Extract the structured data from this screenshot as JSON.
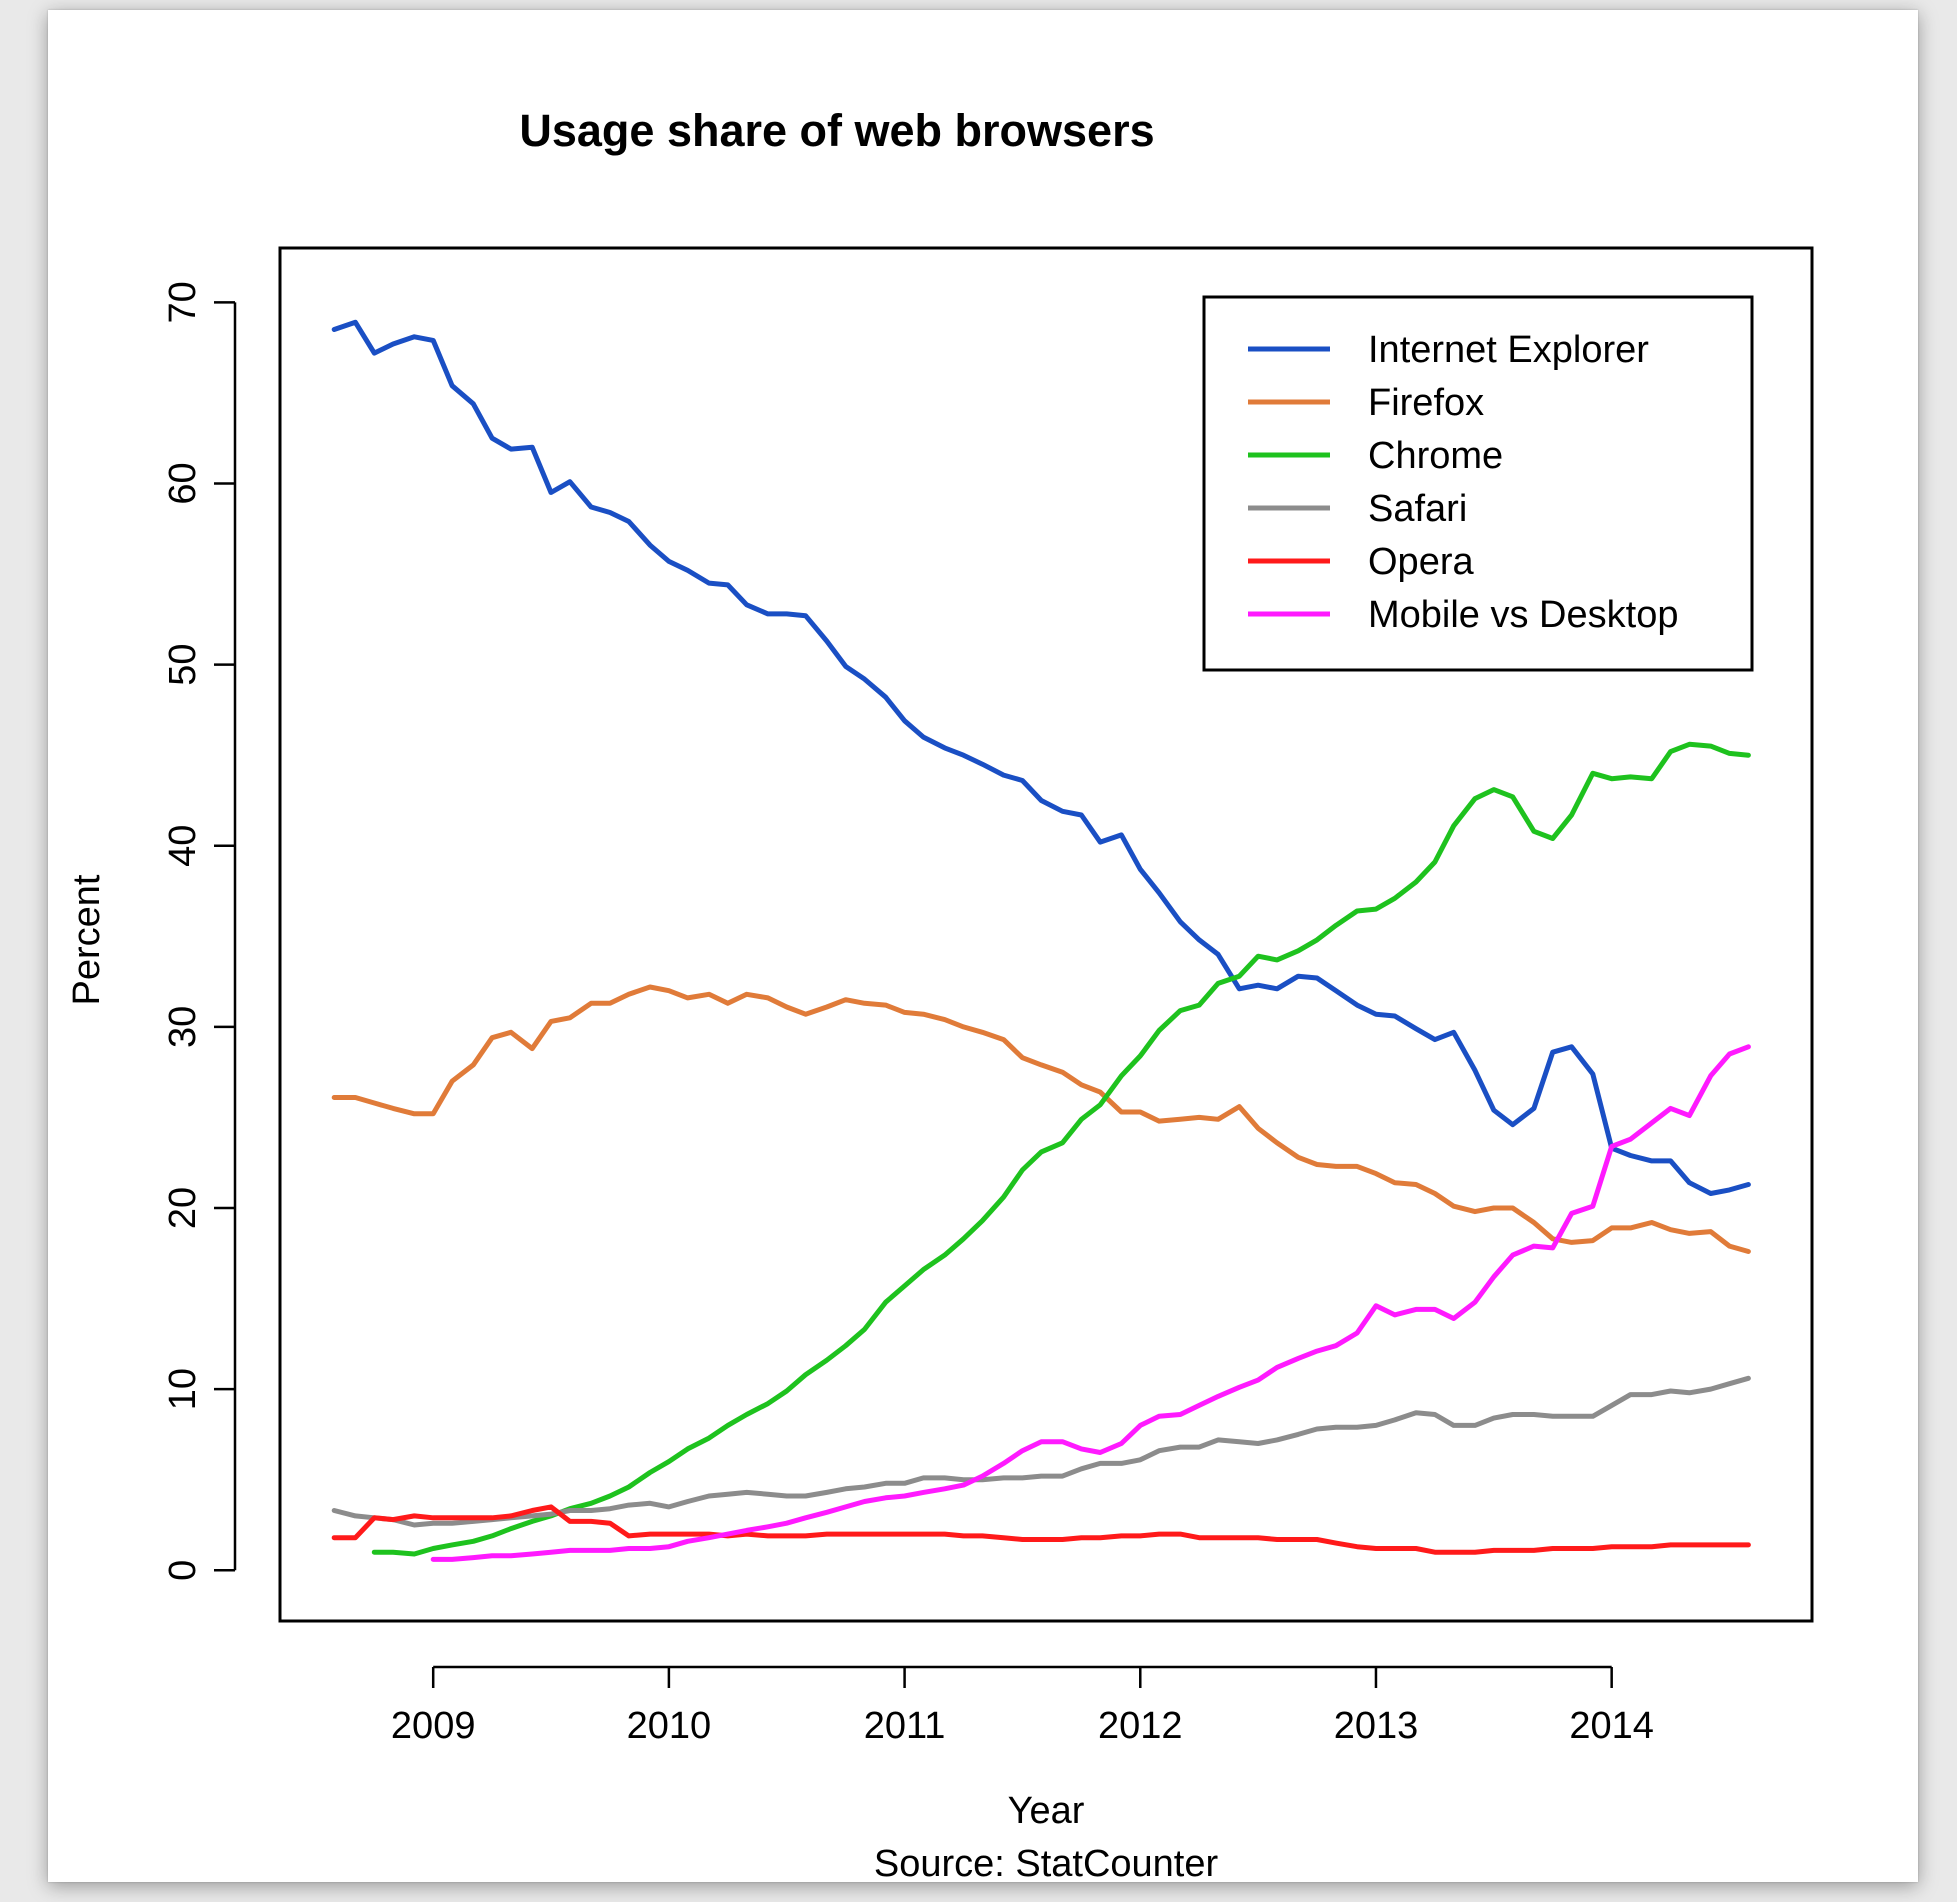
{
  "chart_data": {
    "type": "line",
    "title": "Usage share of web browsers",
    "xlabel": "Year",
    "ylabel": "Percent",
    "caption": "Source: StatCounter",
    "xlim": [
      2008.35,
      2014.85
    ],
    "ylim": [
      -2.8,
      73
    ],
    "x_ticks": [
      2009,
      2010,
      2011,
      2012,
      2013,
      2014
    ],
    "y_ticks": [
      0,
      10,
      20,
      30,
      40,
      50,
      60,
      70
    ],
    "legend_position": "top-right",
    "grid": false,
    "series": [
      {
        "name": "Internet Explorer",
        "color": "#1a4fc4",
        "x": [
          2008.58,
          2008.67,
          2008.75,
          2008.83,
          2008.92,
          2009.0,
          2009.08,
          2009.17,
          2009.25,
          2009.33,
          2009.42,
          2009.5,
          2009.58,
          2009.67,
          2009.75,
          2009.83,
          2009.92,
          2010.0,
          2010.08,
          2010.17,
          2010.25,
          2010.33,
          2010.42,
          2010.5,
          2010.58,
          2010.67,
          2010.75,
          2010.83,
          2010.92,
          2011.0,
          2011.08,
          2011.17,
          2011.25,
          2011.33,
          2011.42,
          2011.5,
          2011.58,
          2011.67,
          2011.75,
          2011.83,
          2011.92,
          2012.0,
          2012.08,
          2012.17,
          2012.25,
          2012.33,
          2012.42,
          2012.5,
          2012.58,
          2012.67,
          2012.75,
          2012.83,
          2012.92,
          2013.0,
          2013.08,
          2013.17,
          2013.25,
          2013.33,
          2013.42,
          2013.5,
          2013.58,
          2013.67,
          2013.75,
          2013.83,
          2013.92,
          2014.0,
          2014.08,
          2014.17,
          2014.25,
          2014.33,
          2014.42,
          2014.5,
          2014.58
        ],
        "y": [
          68.5,
          68.9,
          67.2,
          67.7,
          68.1,
          67.9,
          65.4,
          64.4,
          62.5,
          61.9,
          62.0,
          59.5,
          60.1,
          58.7,
          58.4,
          57.9,
          56.6,
          55.7,
          55.2,
          54.5,
          54.4,
          53.3,
          52.8,
          52.8,
          52.7,
          51.3,
          49.9,
          49.2,
          48.2,
          46.9,
          46.0,
          45.4,
          45.0,
          44.5,
          43.9,
          43.6,
          42.5,
          41.9,
          41.7,
          40.2,
          40.6,
          38.7,
          37.4,
          35.8,
          34.8,
          34.0,
          32.1,
          32.3,
          32.1,
          32.8,
          32.7,
          32.0,
          31.2,
          30.7,
          30.6,
          29.9,
          29.3,
          29.7,
          27.6,
          25.4,
          24.6,
          25.5,
          28.6,
          28.9,
          27.4,
          23.3,
          22.9,
          22.6,
          22.6,
          21.4,
          20.8,
          21.0,
          21.3
        ]
      },
      {
        "name": "Firefox",
        "color": "#e07b39",
        "x": [
          2008.58,
          2008.67,
          2008.75,
          2008.83,
          2008.92,
          2009.0,
          2009.08,
          2009.17,
          2009.25,
          2009.33,
          2009.42,
          2009.5,
          2009.58,
          2009.67,
          2009.75,
          2009.83,
          2009.92,
          2010.0,
          2010.08,
          2010.17,
          2010.25,
          2010.33,
          2010.42,
          2010.5,
          2010.58,
          2010.67,
          2010.75,
          2010.83,
          2010.92,
          2011.0,
          2011.08,
          2011.17,
          2011.25,
          2011.33,
          2011.42,
          2011.5,
          2011.58,
          2011.67,
          2011.75,
          2011.83,
          2011.92,
          2012.0,
          2012.08,
          2012.17,
          2012.25,
          2012.33,
          2012.42,
          2012.5,
          2012.58,
          2012.67,
          2012.75,
          2012.83,
          2012.92,
          2013.0,
          2013.08,
          2013.17,
          2013.25,
          2013.33,
          2013.42,
          2013.5,
          2013.58,
          2013.67,
          2013.75,
          2013.83,
          2013.92,
          2014.0,
          2014.08,
          2014.17,
          2014.25,
          2014.33,
          2014.42,
          2014.5,
          2014.58
        ],
        "y": [
          26.1,
          26.1,
          25.8,
          25.5,
          25.2,
          25.2,
          27.0,
          27.9,
          29.4,
          29.7,
          28.8,
          30.3,
          30.5,
          31.3,
          31.3,
          31.8,
          32.2,
          32.0,
          31.6,
          31.8,
          31.3,
          31.8,
          31.6,
          31.1,
          30.7,
          31.1,
          31.5,
          31.3,
          31.2,
          30.8,
          30.7,
          30.4,
          30.0,
          29.7,
          29.3,
          28.3,
          27.9,
          27.5,
          26.8,
          26.4,
          25.3,
          25.3,
          24.8,
          24.9,
          25.0,
          24.9,
          25.6,
          24.4,
          23.6,
          22.8,
          22.4,
          22.3,
          22.3,
          21.9,
          21.4,
          21.3,
          20.8,
          20.1,
          19.8,
          20.0,
          20.0,
          19.2,
          18.3,
          18.1,
          18.2,
          18.9,
          18.9,
          19.2,
          18.8,
          18.6,
          18.7,
          17.9,
          17.6
        ]
      },
      {
        "name": "Chrome",
        "color": "#1ec21e",
        "x": [
          2008.75,
          2008.83,
          2008.92,
          2009.0,
          2009.08,
          2009.17,
          2009.25,
          2009.33,
          2009.42,
          2009.5,
          2009.58,
          2009.67,
          2009.75,
          2009.83,
          2009.92,
          2010.0,
          2010.08,
          2010.17,
          2010.25,
          2010.33,
          2010.42,
          2010.5,
          2010.58,
          2010.67,
          2010.75,
          2010.83,
          2010.92,
          2011.0,
          2011.08,
          2011.17,
          2011.25,
          2011.33,
          2011.42,
          2011.5,
          2011.58,
          2011.67,
          2011.75,
          2011.83,
          2011.92,
          2012.0,
          2012.08,
          2012.17,
          2012.25,
          2012.33,
          2012.42,
          2012.5,
          2012.58,
          2012.67,
          2012.75,
          2012.83,
          2012.92,
          2013.0,
          2013.08,
          2013.17,
          2013.25,
          2013.33,
          2013.42,
          2013.5,
          2013.58,
          2013.67,
          2013.75,
          2013.83,
          2013.92,
          2014.0,
          2014.08,
          2014.17,
          2014.25,
          2014.33,
          2014.42,
          2014.5,
          2014.58
        ],
        "y": [
          1.0,
          1.0,
          0.9,
          1.2,
          1.4,
          1.6,
          1.9,
          2.3,
          2.7,
          3.0,
          3.4,
          3.7,
          4.1,
          4.6,
          5.4,
          6.0,
          6.7,
          7.3,
          8.0,
          8.6,
          9.2,
          9.9,
          10.8,
          11.6,
          12.4,
          13.3,
          14.8,
          15.7,
          16.6,
          17.4,
          18.3,
          19.3,
          20.6,
          22.1,
          23.1,
          23.6,
          24.9,
          25.7,
          27.3,
          28.4,
          29.8,
          30.9,
          31.2,
          32.4,
          32.8,
          33.9,
          33.7,
          34.2,
          34.8,
          35.6,
          36.4,
          36.5,
          37.1,
          38.0,
          39.1,
          41.1,
          42.6,
          43.1,
          42.7,
          40.8,
          40.4,
          41.7,
          44.0,
          43.7,
          43.8,
          43.7,
          45.2,
          45.6,
          45.5,
          45.1,
          45.0
        ]
      },
      {
        "name": "Safari",
        "color": "#8c8c8c",
        "x": [
          2008.58,
          2008.67,
          2008.75,
          2008.83,
          2008.92,
          2009.0,
          2009.08,
          2009.17,
          2009.25,
          2009.33,
          2009.42,
          2009.5,
          2009.58,
          2009.67,
          2009.75,
          2009.83,
          2009.92,
          2010.0,
          2010.08,
          2010.17,
          2010.25,
          2010.33,
          2010.42,
          2010.5,
          2010.58,
          2010.67,
          2010.75,
          2010.83,
          2010.92,
          2011.0,
          2011.08,
          2011.17,
          2011.25,
          2011.33,
          2011.42,
          2011.5,
          2011.58,
          2011.67,
          2011.75,
          2011.83,
          2011.92,
          2012.0,
          2012.08,
          2012.17,
          2012.25,
          2012.33,
          2012.42,
          2012.5,
          2012.58,
          2012.67,
          2012.75,
          2012.83,
          2012.92,
          2013.0,
          2013.08,
          2013.17,
          2013.25,
          2013.33,
          2013.42,
          2013.5,
          2013.58,
          2013.67,
          2013.75,
          2013.83,
          2013.92,
          2014.0,
          2014.08,
          2014.17,
          2014.25,
          2014.33,
          2014.42,
          2014.5,
          2014.58
        ],
        "y": [
          3.3,
          3.0,
          2.9,
          2.8,
          2.5,
          2.6,
          2.6,
          2.7,
          2.8,
          2.9,
          3.0,
          3.1,
          3.3,
          3.3,
          3.4,
          3.6,
          3.7,
          3.5,
          3.8,
          4.1,
          4.2,
          4.3,
          4.2,
          4.1,
          4.1,
          4.3,
          4.5,
          4.6,
          4.8,
          4.8,
          5.1,
          5.1,
          5.0,
          5.0,
          5.1,
          5.1,
          5.2,
          5.2,
          5.6,
          5.9,
          5.9,
          6.1,
          6.6,
          6.8,
          6.8,
          7.2,
          7.1,
          7.0,
          7.2,
          7.5,
          7.8,
          7.9,
          7.9,
          8.0,
          8.3,
          8.7,
          8.6,
          8.0,
          8.0,
          8.4,
          8.6,
          8.6,
          8.5,
          8.5,
          8.5,
          9.1,
          9.7,
          9.7,
          9.9,
          9.8,
          10.0,
          10.3,
          10.6
        ]
      },
      {
        "name": "Opera",
        "color": "#ff1a1a",
        "x": [
          2008.58,
          2008.67,
          2008.75,
          2008.83,
          2008.92,
          2009.0,
          2009.08,
          2009.17,
          2009.25,
          2009.33,
          2009.42,
          2009.5,
          2009.58,
          2009.67,
          2009.75,
          2009.83,
          2009.92,
          2010.0,
          2010.08,
          2010.17,
          2010.25,
          2010.33,
          2010.42,
          2010.5,
          2010.58,
          2010.67,
          2010.75,
          2010.83,
          2010.92,
          2011.0,
          2011.08,
          2011.17,
          2011.25,
          2011.33,
          2011.42,
          2011.5,
          2011.58,
          2011.67,
          2011.75,
          2011.83,
          2011.92,
          2012.0,
          2012.08,
          2012.17,
          2012.25,
          2012.33,
          2012.42,
          2012.5,
          2012.58,
          2012.67,
          2012.75,
          2012.83,
          2012.92,
          2013.0,
          2013.08,
          2013.17,
          2013.25,
          2013.33,
          2013.42,
          2013.5,
          2013.58,
          2013.67,
          2013.75,
          2013.83,
          2013.92,
          2014.0,
          2014.08,
          2014.17,
          2014.25,
          2014.33,
          2014.42,
          2014.5,
          2014.58
        ],
        "y": [
          1.8,
          1.8,
          2.9,
          2.8,
          3.0,
          2.9,
          2.9,
          2.9,
          2.9,
          3.0,
          3.3,
          3.5,
          2.7,
          2.7,
          2.6,
          1.9,
          2.0,
          2.0,
          2.0,
          2.0,
          1.9,
          2.0,
          1.9,
          1.9,
          1.9,
          2.0,
          2.0,
          2.0,
          2.0,
          2.0,
          2.0,
          2.0,
          1.9,
          1.9,
          1.8,
          1.7,
          1.7,
          1.7,
          1.8,
          1.8,
          1.9,
          1.9,
          2.0,
          2.0,
          1.8,
          1.8,
          1.8,
          1.8,
          1.7,
          1.7,
          1.7,
          1.5,
          1.3,
          1.2,
          1.2,
          1.2,
          1.0,
          1.0,
          1.0,
          1.1,
          1.1,
          1.1,
          1.2,
          1.2,
          1.2,
          1.3,
          1.3,
          1.3,
          1.4,
          1.4,
          1.4,
          1.4,
          1.4
        ]
      },
      {
        "name": "Mobile vs Desktop",
        "color": "#ff1aff",
        "x": [
          2009.0,
          2009.08,
          2009.17,
          2009.25,
          2009.33,
          2009.42,
          2009.5,
          2009.58,
          2009.67,
          2009.75,
          2009.83,
          2009.92,
          2010.0,
          2010.08,
          2010.17,
          2010.25,
          2010.33,
          2010.42,
          2010.5,
          2010.58,
          2010.67,
          2010.75,
          2010.83,
          2010.92,
          2011.0,
          2011.08,
          2011.17,
          2011.25,
          2011.33,
          2011.42,
          2011.5,
          2011.58,
          2011.67,
          2011.75,
          2011.83,
          2011.92,
          2012.0,
          2012.08,
          2012.17,
          2012.25,
          2012.33,
          2012.42,
          2012.5,
          2012.58,
          2012.67,
          2012.75,
          2012.83,
          2012.92,
          2013.0,
          2013.08,
          2013.17,
          2013.25,
          2013.33,
          2013.42,
          2013.5,
          2013.58,
          2013.67,
          2013.75,
          2013.83,
          2013.92,
          2014.0,
          2014.08,
          2014.17,
          2014.25,
          2014.33,
          2014.42,
          2014.5,
          2014.58
        ],
        "y": [
          0.6,
          0.6,
          0.7,
          0.8,
          0.8,
          0.9,
          1.0,
          1.1,
          1.1,
          1.1,
          1.2,
          1.2,
          1.3,
          1.6,
          1.8,
          2.0,
          2.2,
          2.4,
          2.6,
          2.9,
          3.2,
          3.5,
          3.8,
          4.0,
          4.1,
          4.3,
          4.5,
          4.7,
          5.2,
          5.9,
          6.6,
          7.1,
          7.1,
          6.7,
          6.5,
          7.0,
          8.0,
          8.5,
          8.6,
          9.1,
          9.6,
          10.1,
          10.5,
          11.2,
          11.7,
          12.1,
          12.4,
          13.1,
          14.6,
          14.1,
          14.4,
          14.4,
          13.9,
          14.8,
          16.2,
          17.4,
          17.9,
          17.8,
          19.7,
          20.1,
          23.4,
          23.8,
          24.7,
          25.5,
          25.1,
          27.3,
          28.5,
          28.9
        ]
      }
    ]
  }
}
